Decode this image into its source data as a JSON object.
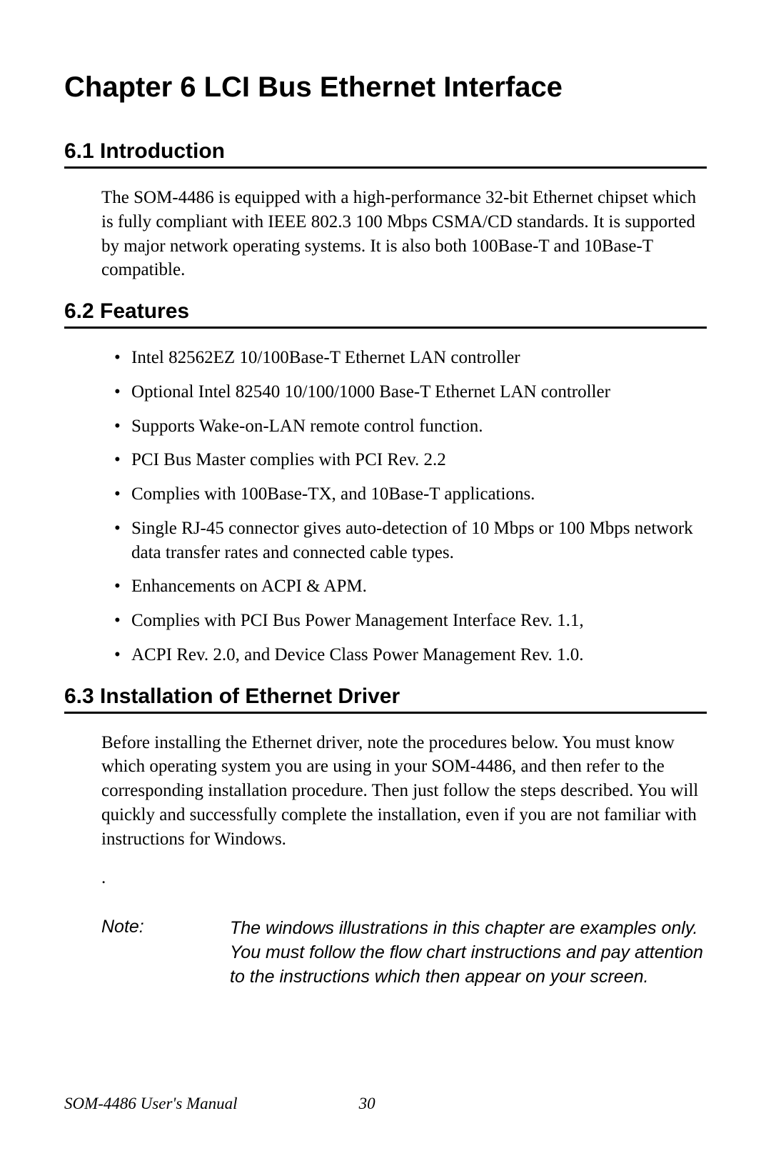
{
  "chapter": {
    "title": "Chapter 6  LCI Bus Ethernet Interface"
  },
  "sections": {
    "intro": {
      "heading": "6.1  Introduction",
      "body": "The SOM-4486 is equipped with a high-performance 32-bit Ethernet chipset which is fully compliant with IEEE 802.3 100 Mbps CSMA/CD standards. It is supported by major network operating systems. It is also both 100Base-T and 10Base-T compatible."
    },
    "features": {
      "heading": "6.2  Features",
      "items": [
        "Intel 82562EZ 10/100Base-T Ethernet LAN controller",
        "Optional Intel 82540 10/100/1000 Base-T Ethernet LAN controller",
        "Supports Wake-on-LAN remote control function.",
        "PCI Bus Master complies with PCI Rev. 2.2",
        "Complies with 100Base-TX, and 10Base-T applications.",
        "Single RJ-45 connector gives auto-detection of 10 Mbps or 100 Mbps network data transfer rates and connected cable types.",
        "Enhancements on ACPI & APM.",
        "Complies with PCI Bus Power Management Interface Rev. 1.1,",
        "ACPI Rev. 2.0, and Device Class Power Management Rev. 1.0."
      ]
    },
    "install": {
      "heading": "6.3  Installation of Ethernet Driver",
      "body": "Before installing the Ethernet driver, note the procedures below. You must know which operating system you are using in your SOM-4486, and then refer to the corresponding installation procedure. Then just follow the steps described. You will quickly and successfully complete the installation, even if you are not familiar with instructions for Windows.",
      "dot": "."
    }
  },
  "note": {
    "label": "Note:",
    "text": "The windows illustrations in this chapter are examples only. You must follow the flow chart instructions and pay attention to the instructions which then appear on your screen."
  },
  "footer": {
    "manual": "SOM-4486 User's Manual",
    "page": "30"
  }
}
